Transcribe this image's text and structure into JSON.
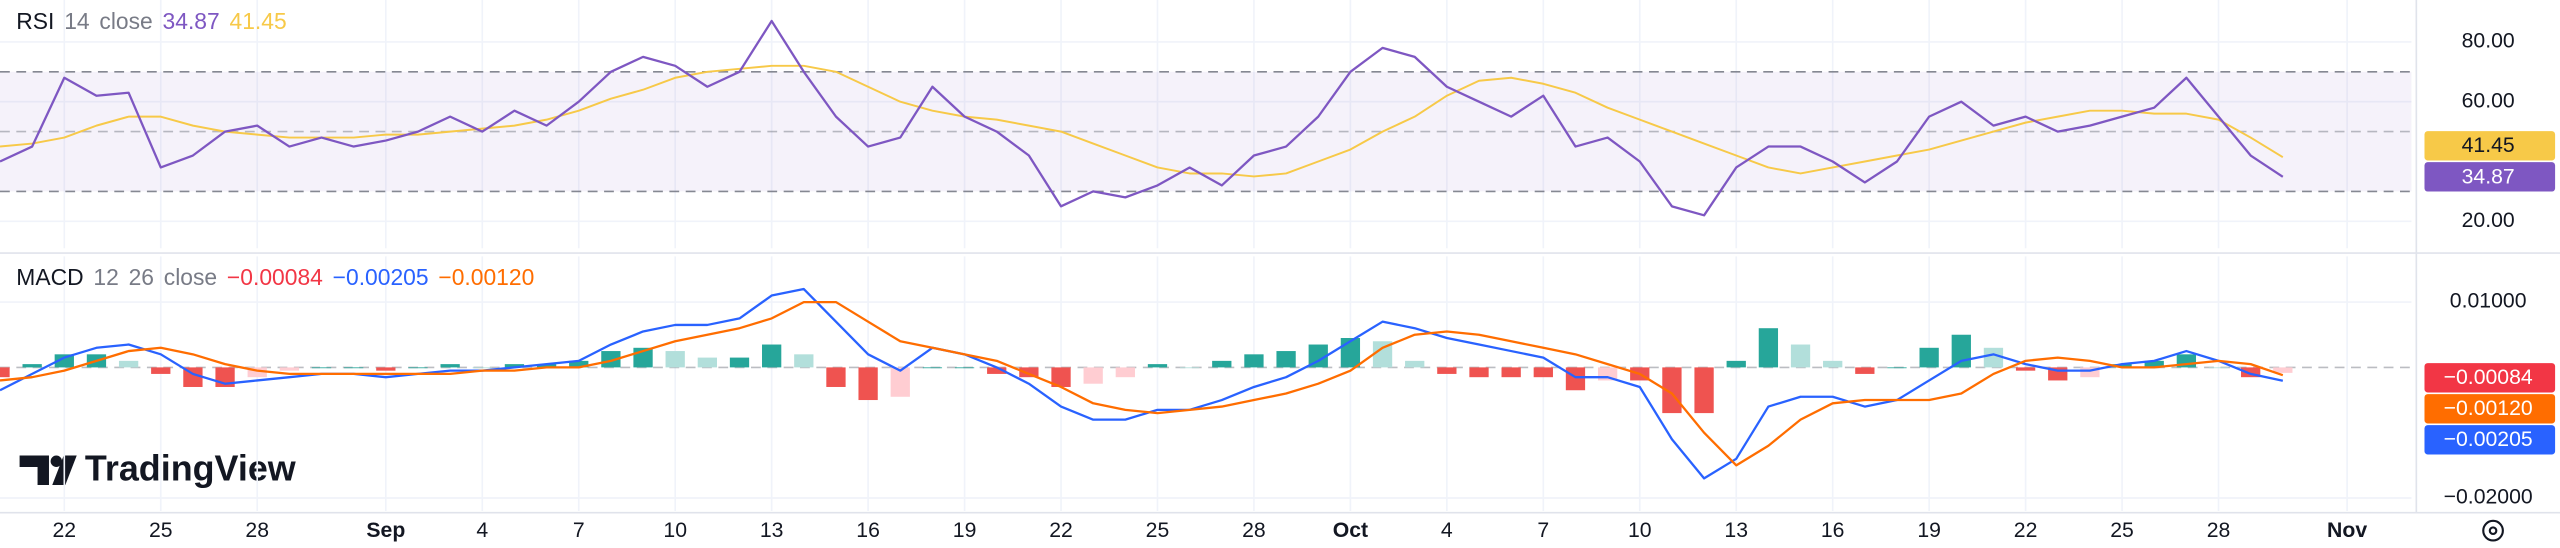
{
  "chart_data": [
    {
      "type": "line",
      "title": "RSI",
      "params": [
        "14",
        "close"
      ],
      "x": [
        0,
        1,
        2,
        3,
        4,
        5,
        6,
        7,
        8,
        9,
        10,
        11,
        12,
        13,
        14,
        15,
        16,
        17,
        18,
        19,
        20,
        21,
        22,
        23,
        24,
        25,
        26,
        27,
        28,
        29,
        30,
        31,
        32,
        33,
        34,
        35,
        36,
        37,
        38,
        39,
        40,
        41,
        42,
        43,
        44,
        45,
        46,
        47,
        48,
        49,
        50,
        51,
        52,
        53,
        54,
        55,
        56,
        57,
        58,
        59,
        60,
        61,
        62,
        63,
        64,
        65,
        66,
        67,
        68,
        69,
        70,
        71
      ],
      "xlim": [
        0,
        75
      ],
      "ylim": [
        11,
        94
      ],
      "yticks": [
        {
          "value": 80,
          "label": "80.00"
        },
        {
          "value": 60,
          "label": "60.00"
        },
        {
          "value": 20,
          "label": "20.00"
        }
      ],
      "levels": [
        30,
        50,
        70
      ],
      "band_color": "#7e57c2",
      "grid": true,
      "series": [
        {
          "color": "#7e57c2",
          "text_color": "#ffffff",
          "values": [
            40,
            45,
            68,
            62,
            63,
            38,
            42,
            50,
            52,
            45,
            48,
            45,
            47,
            50,
            55,
            50,
            57,
            52,
            60,
            70,
            75,
            72,
            65,
            70,
            87,
            70,
            55,
            45,
            48,
            65,
            55,
            50,
            42,
            25,
            30,
            28,
            32,
            38,
            32,
            42,
            45,
            55,
            70,
            78,
            75,
            65,
            60,
            55,
            62,
            45,
            48,
            40,
            25,
            22,
            38,
            45,
            45,
            40,
            33,
            40,
            55,
            60,
            52,
            55,
            50,
            52,
            55,
            58,
            68,
            55,
            42,
            34.87
          ]
        },
        {
          "color": "#f7c948",
          "text_color": "#131722",
          "values": [
            45,
            46,
            48,
            52,
            55,
            55,
            52,
            50,
            49,
            48,
            48,
            48,
            49,
            49,
            50,
            51,
            52,
            54,
            57,
            61,
            64,
            68,
            70,
            71,
            72,
            72,
            70,
            65,
            60,
            57,
            55,
            54,
            52,
            50,
            46,
            42,
            38,
            36,
            36,
            35,
            36,
            40,
            44,
            50,
            55,
            62,
            67,
            68,
            66,
            63,
            58,
            54,
            50,
            46,
            42,
            38,
            36,
            38,
            40,
            42,
            44,
            47,
            50,
            53,
            55,
            57,
            57,
            56,
            56,
            54,
            48,
            41.45
          ]
        }
      ]
    },
    {
      "type": "macd",
      "title": "MACD",
      "params": [
        "12",
        "26",
        "close"
      ],
      "x": [
        0,
        1,
        2,
        3,
        4,
        5,
        6,
        7,
        8,
        9,
        10,
        11,
        12,
        13,
        14,
        15,
        16,
        17,
        18,
        19,
        20,
        21,
        22,
        23,
        24,
        25,
        26,
        27,
        28,
        29,
        30,
        31,
        32,
        33,
        34,
        35,
        36,
        37,
        38,
        39,
        40,
        41,
        42,
        43,
        44,
        45,
        46,
        47,
        48,
        49,
        50,
        51,
        52,
        53,
        54,
        55,
        56,
        57,
        58,
        59,
        60,
        61,
        62,
        63,
        64,
        65,
        66,
        67,
        68,
        69,
        70,
        71
      ],
      "xlim": [
        0,
        75
      ],
      "ylim": [
        -0.022,
        0.017
      ],
      "yticks": [
        {
          "value": 0.01,
          "label": "0.01000"
        },
        {
          "value": -0.02,
          "label": "−0.02000"
        }
      ],
      "xticks": [
        {
          "value": 2,
          "label": "22"
        },
        {
          "value": 5,
          "label": "25"
        },
        {
          "value": 8,
          "label": "28"
        },
        {
          "value": 12,
          "label": "Sep"
        },
        {
          "value": 15,
          "label": "4"
        },
        {
          "value": 18,
          "label": "7"
        },
        {
          "value": 21,
          "label": "10"
        },
        {
          "value": 24,
          "label": "13"
        },
        {
          "value": 27,
          "label": "16"
        },
        {
          "value": 30,
          "label": "19"
        },
        {
          "value": 33,
          "label": "22"
        },
        {
          "value": 36,
          "label": "25"
        },
        {
          "value": 39,
          "label": "28"
        },
        {
          "value": 42,
          "label": "Oct"
        },
        {
          "value": 45,
          "label": "4"
        },
        {
          "value": 48,
          "label": "7"
        },
        {
          "value": 51,
          "label": "10"
        },
        {
          "value": 54,
          "label": "13"
        },
        {
          "value": 57,
          "label": "16"
        },
        {
          "value": 60,
          "label": "19"
        },
        {
          "value": 63,
          "label": "22"
        },
        {
          "value": 66,
          "label": "25"
        },
        {
          "value": 69,
          "label": "28"
        },
        {
          "value": 73,
          "label": "Nov"
        }
      ],
      "grid": true,
      "zero_line": true,
      "histogram_colors": {
        "up": "#26a69a",
        "up_fading": "#b2dfdb",
        "down": "#ef5350",
        "down_fading": "#ffcdd2"
      },
      "series": [
        {
          "kind": "histogram",
          "color": "#ef5350",
          "values": [
            -0.0015,
            0.0005,
            0.002,
            0.002,
            0.001,
            -0.001,
            -0.003,
            -0.003,
            -0.0015,
            -0.0005,
            0,
            0,
            -0.0005,
            0,
            0.0005,
            0,
            0.0005,
            0.0005,
            0.001,
            0.0025,
            0.003,
            0.0025,
            0.0015,
            0.0015,
            0.0035,
            0.002,
            -0.003,
            -0.005,
            -0.0045,
            0,
            0,
            -0.001,
            -0.0015,
            -0.003,
            -0.0025,
            -0.0015,
            0.0005,
            0,
            0.001,
            0.002,
            0.0025,
            0.0035,
            0.0045,
            0.004,
            0.001,
            -0.001,
            -0.0015,
            -0.0015,
            -0.0015,
            -0.0035,
            -0.002,
            -0.002,
            -0.007,
            -0.007,
            0.001,
            0.006,
            0.0035,
            0.001,
            -0.001,
            0,
            0.003,
            0.005,
            0.003,
            -0.0005,
            -0.002,
            -0.0015,
            0.0005,
            0.001,
            0.002,
            0,
            -0.0015,
            -0.00084
          ]
        },
        {
          "kind": "line",
          "color": "#2962ff",
          "values": [
            -0.0035,
            -0.001,
            0.0015,
            0.003,
            0.0035,
            0.002,
            -0.001,
            -0.0025,
            -0.002,
            -0.0015,
            -0.001,
            -0.001,
            -0.0015,
            -0.001,
            -0.0005,
            -0.0005,
            0,
            0.0005,
            0.001,
            0.0035,
            0.0055,
            0.0065,
            0.0065,
            0.0075,
            0.011,
            0.012,
            0.007,
            0.002,
            -0.0005,
            0.003,
            0.002,
            0,
            -0.0025,
            -0.006,
            -0.008,
            -0.008,
            -0.0065,
            -0.0065,
            -0.005,
            -0.003,
            -0.0015,
            0.001,
            0.004,
            0.007,
            0.006,
            0.0045,
            0.0035,
            0.0025,
            0.0015,
            -0.0015,
            -0.0015,
            -0.003,
            -0.011,
            -0.017,
            -0.014,
            -0.006,
            -0.0045,
            -0.0045,
            -0.006,
            -0.005,
            -0.002,
            0.001,
            0.002,
            0.0005,
            -0.0005,
            -0.0005,
            0.0005,
            0.001,
            0.0025,
            0.001,
            -0.001,
            -0.00205
          ]
        },
        {
          "kind": "line",
          "color": "#ff6d00",
          "values": [
            -0.002,
            -0.0015,
            -0.0005,
            0.001,
            0.0025,
            0.003,
            0.002,
            0.0005,
            -0.0005,
            -0.001,
            -0.001,
            -0.001,
            -0.001,
            -0.001,
            -0.001,
            -0.0005,
            -0.0005,
            0,
            0,
            0.001,
            0.0025,
            0.004,
            0.005,
            0.006,
            0.0075,
            0.01,
            0.01,
            0.007,
            0.004,
            0.003,
            0.002,
            0.001,
            -0.001,
            -0.003,
            -0.0055,
            -0.0065,
            -0.007,
            -0.0065,
            -0.006,
            -0.005,
            -0.004,
            -0.0025,
            -0.0005,
            0.003,
            0.005,
            0.0055,
            0.005,
            0.004,
            0.003,
            0.002,
            0.0005,
            -0.001,
            -0.004,
            -0.01,
            -0.015,
            -0.012,
            -0.008,
            -0.0055,
            -0.005,
            -0.005,
            -0.005,
            -0.004,
            -0.001,
            0.001,
            0.0015,
            0.001,
            0,
            0,
            0.0005,
            0.001,
            0.0005,
            -0.0012
          ]
        }
      ],
      "header_values": [
        {
          "value": -0.00084,
          "label": "−0.00084",
          "color": "#f23645"
        },
        {
          "value": -0.00205,
          "label": "−0.00205",
          "color": "#2962ff"
        },
        {
          "value": -0.0012,
          "label": "−0.00120",
          "color": "#ff6d00"
        }
      ],
      "axis_order": [
        0,
        2,
        1
      ],
      "watermark": "TradingView"
    }
  ]
}
